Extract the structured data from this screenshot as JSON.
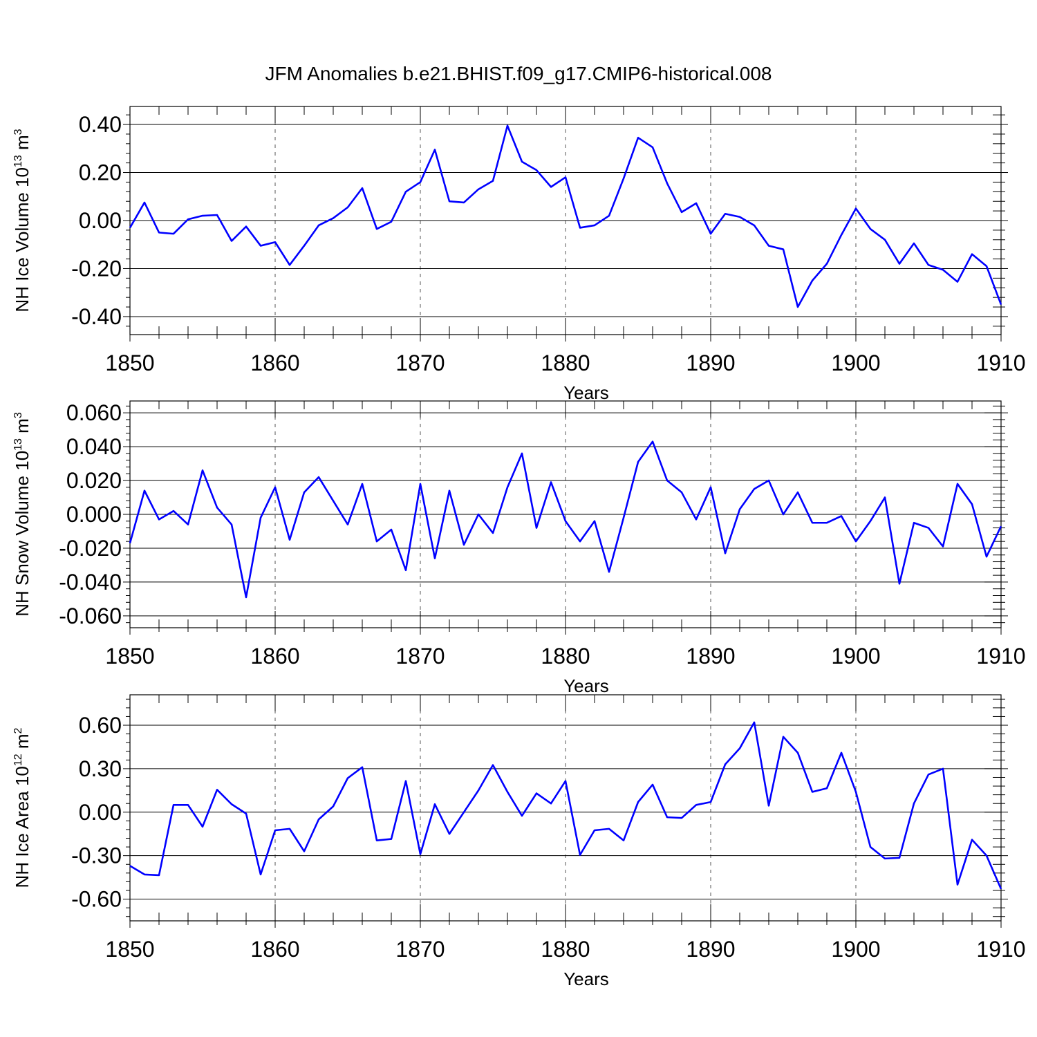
{
  "figure": {
    "title": "JFM Anomalies b.e21.BHIST.f09_g17.CMIP6-historical.008"
  },
  "chart_data": [
    {
      "type": "line",
      "title": "JFM Anomalies b.e21.BHIST.f09_g17.CMIP6-historical.008",
      "xlabel": "Years",
      "ylabel": "NH Ice Volume 10",
      "ylabel_exp": "13",
      "ylabel_unit": " m",
      "ylabel_unit_exp": "3",
      "xlim": [
        1850,
        1910
      ],
      "ylim": [
        -0.475,
        0.475
      ],
      "xticks": [
        1850,
        1860,
        1870,
        1880,
        1890,
        1900,
        1910
      ],
      "xtick_labels": [
        "1850",
        "1860",
        "1870",
        "1880",
        "1890",
        "1900",
        "1910"
      ],
      "yticks": [
        -0.4,
        -0.2,
        0.0,
        0.2,
        0.4
      ],
      "ytick_labels": [
        "-0.40",
        "-0.20",
        "0.00",
        "0.20",
        "0.40"
      ],
      "grid": "dashed vertical at major x ticks",
      "line_color": "#0000ff",
      "x": [
        1850,
        1851,
        1852,
        1853,
        1854,
        1855,
        1856,
        1857,
        1858,
        1859,
        1860,
        1861,
        1862,
        1863,
        1864,
        1865,
        1866,
        1867,
        1868,
        1869,
        1870,
        1871,
        1872,
        1873,
        1874,
        1875,
        1876,
        1877,
        1878,
        1879,
        1880,
        1881,
        1882,
        1883,
        1884,
        1885,
        1886,
        1887,
        1888,
        1889,
        1890,
        1891,
        1892,
        1893,
        1894,
        1895,
        1896,
        1897,
        1898,
        1899,
        1900,
        1901,
        1902,
        1903,
        1904,
        1905,
        1906,
        1907,
        1908,
        1909,
        1910
      ],
      "series": [
        {
          "values": [
            -0.03,
            0.075,
            -0.05,
            -0.055,
            0.005,
            0.02,
            0.023,
            -0.085,
            -0.025,
            -0.105,
            -0.09,
            -0.185,
            -0.105,
            -0.02,
            0.01,
            0.055,
            0.135,
            -0.035,
            -0.005,
            0.12,
            0.16,
            0.295,
            0.08,
            0.075,
            0.13,
            0.165,
            0.395,
            0.245,
            0.21,
            0.14,
            0.18,
            -0.03,
            -0.02,
            0.02,
            0.175,
            0.345,
            0.305,
            0.155,
            0.035,
            0.072,
            -0.055,
            0.028,
            0.015,
            -0.02,
            -0.105,
            -0.12,
            -0.36,
            -0.25,
            -0.18,
            -0.06,
            0.05,
            -0.035,
            -0.08,
            -0.18,
            -0.095,
            -0.185,
            -0.205,
            -0.255,
            -0.14,
            -0.19,
            -0.35
          ]
        }
      ]
    },
    {
      "type": "line",
      "xlabel": "Years",
      "ylabel": "NH Snow Volume 10",
      "ylabel_exp": "13",
      "ylabel_unit": " m",
      "ylabel_unit_exp": "3",
      "xlim": [
        1850,
        1910
      ],
      "ylim": [
        -0.067,
        0.067
      ],
      "xticks": [
        1850,
        1860,
        1870,
        1880,
        1890,
        1900,
        1910
      ],
      "xtick_labels": [
        "1850",
        "1860",
        "1870",
        "1880",
        "1890",
        "1900",
        "1910"
      ],
      "yticks": [
        -0.06,
        -0.04,
        -0.02,
        0.0,
        0.02,
        0.04,
        0.06
      ],
      "ytick_labels": [
        "-0.060",
        "-0.040",
        "-0.020",
        "0.000",
        "0.020",
        "0.040",
        "0.060"
      ],
      "grid": "dashed vertical at major x ticks",
      "line_color": "#0000ff",
      "x": [
        1850,
        1851,
        1852,
        1853,
        1854,
        1855,
        1856,
        1857,
        1858,
        1859,
        1860,
        1861,
        1862,
        1863,
        1864,
        1865,
        1866,
        1867,
        1868,
        1869,
        1870,
        1871,
        1872,
        1873,
        1874,
        1875,
        1876,
        1877,
        1878,
        1879,
        1880,
        1881,
        1882,
        1883,
        1884,
        1885,
        1886,
        1887,
        1888,
        1889,
        1890,
        1891,
        1892,
        1893,
        1894,
        1895,
        1896,
        1897,
        1898,
        1899,
        1900,
        1901,
        1902,
        1903,
        1904,
        1905,
        1906,
        1907,
        1908,
        1909,
        1910
      ],
      "series": [
        {
          "values": [
            -0.017,
            0.014,
            -0.003,
            0.002,
            -0.006,
            0.026,
            0.004,
            -0.006,
            -0.049,
            -0.002,
            0.016,
            -0.015,
            0.013,
            0.022,
            0.008,
            -0.006,
            0.018,
            -0.016,
            -0.009,
            -0.033,
            0.018,
            -0.026,
            0.014,
            -0.018,
            0.0,
            -0.011,
            0.016,
            0.036,
            -0.008,
            0.019,
            -0.004,
            -0.016,
            -0.004,
            -0.034,
            -0.002,
            0.031,
            0.043,
            0.02,
            0.013,
            -0.003,
            0.016,
            -0.023,
            0.003,
            0.015,
            0.02,
            0.0,
            0.013,
            -0.005,
            -0.005,
            -0.001,
            -0.016,
            -0.004,
            0.01,
            -0.041,
            -0.005,
            -0.008,
            -0.019,
            0.018,
            0.006,
            -0.025,
            -0.007
          ]
        }
      ]
    },
    {
      "type": "line",
      "xlabel": "Years",
      "ylabel": "NH Ice Area 10",
      "ylabel_exp": "12",
      "ylabel_unit": " m",
      "ylabel_unit_exp": "2",
      "xlim": [
        1850,
        1910
      ],
      "ylim": [
        -0.75,
        0.81
      ],
      "xticks": [
        1850,
        1860,
        1870,
        1880,
        1890,
        1900,
        1910
      ],
      "xtick_labels": [
        "1850",
        "1860",
        "1870",
        "1880",
        "1890",
        "1900",
        "1910"
      ],
      "yticks": [
        -0.6,
        -0.3,
        0.0,
        0.3,
        0.6
      ],
      "ytick_labels": [
        "-0.60",
        "-0.30",
        "0.00",
        "0.30",
        "0.60"
      ],
      "grid": "dashed vertical at major x ticks",
      "line_color": "#0000ff",
      "x": [
        1850,
        1851,
        1852,
        1853,
        1854,
        1855,
        1856,
        1857,
        1858,
        1859,
        1860,
        1861,
        1862,
        1863,
        1864,
        1865,
        1866,
        1867,
        1868,
        1869,
        1870,
        1871,
        1872,
        1873,
        1874,
        1875,
        1876,
        1877,
        1878,
        1879,
        1880,
        1881,
        1882,
        1883,
        1884,
        1885,
        1886,
        1887,
        1888,
        1889,
        1890,
        1891,
        1892,
        1893,
        1894,
        1895,
        1896,
        1897,
        1898,
        1899,
        1900,
        1901,
        1902,
        1903,
        1904,
        1905,
        1906,
        1907,
        1908,
        1909,
        1910
      ],
      "series": [
        {
          "values": [
            -0.37,
            -0.43,
            -0.435,
            0.05,
            0.05,
            -0.1,
            0.155,
            0.055,
            -0.01,
            -0.43,
            -0.125,
            -0.115,
            -0.27,
            -0.05,
            0.04,
            0.235,
            0.31,
            -0.195,
            -0.185,
            0.215,
            -0.29,
            0.055,
            -0.15,
            0.0,
            0.15,
            0.325,
            0.14,
            -0.025,
            0.13,
            0.06,
            0.215,
            -0.295,
            -0.125,
            -0.115,
            -0.195,
            0.07,
            0.19,
            -0.035,
            -0.04,
            0.05,
            0.07,
            0.33,
            0.44,
            0.62,
            0.045,
            0.52,
            0.41,
            0.14,
            0.165,
            0.41,
            0.14,
            -0.24,
            -0.32,
            -0.315,
            0.06,
            0.26,
            0.3,
            -0.5,
            -0.19,
            -0.3,
            -0.53
          ]
        }
      ]
    }
  ]
}
